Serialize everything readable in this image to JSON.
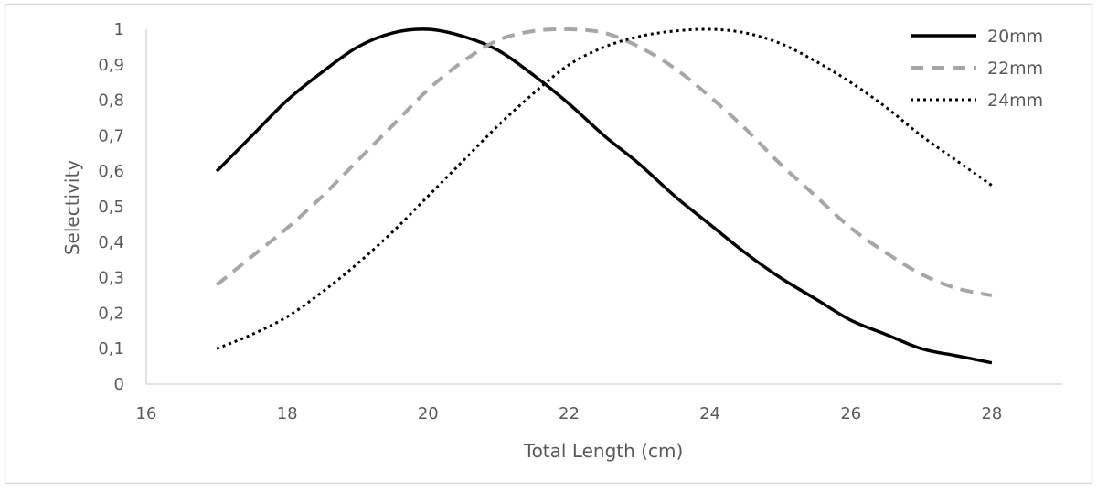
{
  "chart_data": {
    "type": "line",
    "title": "",
    "xlabel": "Total Length (cm)",
    "ylabel": "Selectivity",
    "xlim": [
      16,
      29
    ],
    "ylim": [
      0,
      1
    ],
    "x_ticks": [
      "16",
      "18",
      "20",
      "22",
      "24",
      "26",
      "28"
    ],
    "y_ticks": [
      "0",
      "0,1",
      "0,2",
      "0,3",
      "0,4",
      "0,5",
      "0,6",
      "0,7",
      "0,8",
      "0,9",
      "1"
    ],
    "legend_position": "top-right",
    "grid": false,
    "series": [
      {
        "name": "20mm",
        "line_style": "solid",
        "color": "#000000",
        "x": [
          17,
          17.5,
          18,
          18.5,
          19,
          19.5,
          20,
          20.5,
          21,
          21.5,
          22,
          22.5,
          23,
          23.5,
          24,
          24.5,
          25,
          25.5,
          26,
          26.5,
          27,
          27.5,
          28
        ],
        "y": [
          0.6,
          0.7,
          0.8,
          0.88,
          0.95,
          0.99,
          1.0,
          0.98,
          0.94,
          0.87,
          0.79,
          0.7,
          0.62,
          0.53,
          0.45,
          0.37,
          0.3,
          0.24,
          0.18,
          0.14,
          0.1,
          0.08,
          0.06
        ]
      },
      {
        "name": "22mm",
        "line_style": "dashed",
        "color": "#a6a6a6",
        "x": [
          17,
          17.5,
          18,
          18.5,
          19,
          19.5,
          20,
          20.5,
          21,
          21.5,
          22,
          22.5,
          23,
          23.5,
          24,
          24.5,
          25,
          25.5,
          26,
          26.5,
          27,
          27.5,
          28
        ],
        "y": [
          0.28,
          0.36,
          0.44,
          0.53,
          0.63,
          0.73,
          0.83,
          0.91,
          0.97,
          0.995,
          1.0,
          0.99,
          0.95,
          0.89,
          0.81,
          0.72,
          0.62,
          0.53,
          0.44,
          0.37,
          0.31,
          0.27,
          0.25
        ]
      },
      {
        "name": "24mm",
        "line_style": "dotted",
        "color": "#000000",
        "x": [
          17,
          17.5,
          18,
          18.5,
          19,
          19.5,
          20,
          20.5,
          21,
          21.5,
          22,
          22.5,
          23,
          23.5,
          24,
          24.5,
          25,
          25.5,
          26,
          26.5,
          27,
          27.5,
          28
        ],
        "y": [
          0.1,
          0.14,
          0.19,
          0.26,
          0.34,
          0.43,
          0.53,
          0.63,
          0.73,
          0.82,
          0.9,
          0.95,
          0.98,
          0.995,
          1.0,
          0.99,
          0.96,
          0.91,
          0.85,
          0.78,
          0.7,
          0.63,
          0.56
        ]
      }
    ]
  }
}
